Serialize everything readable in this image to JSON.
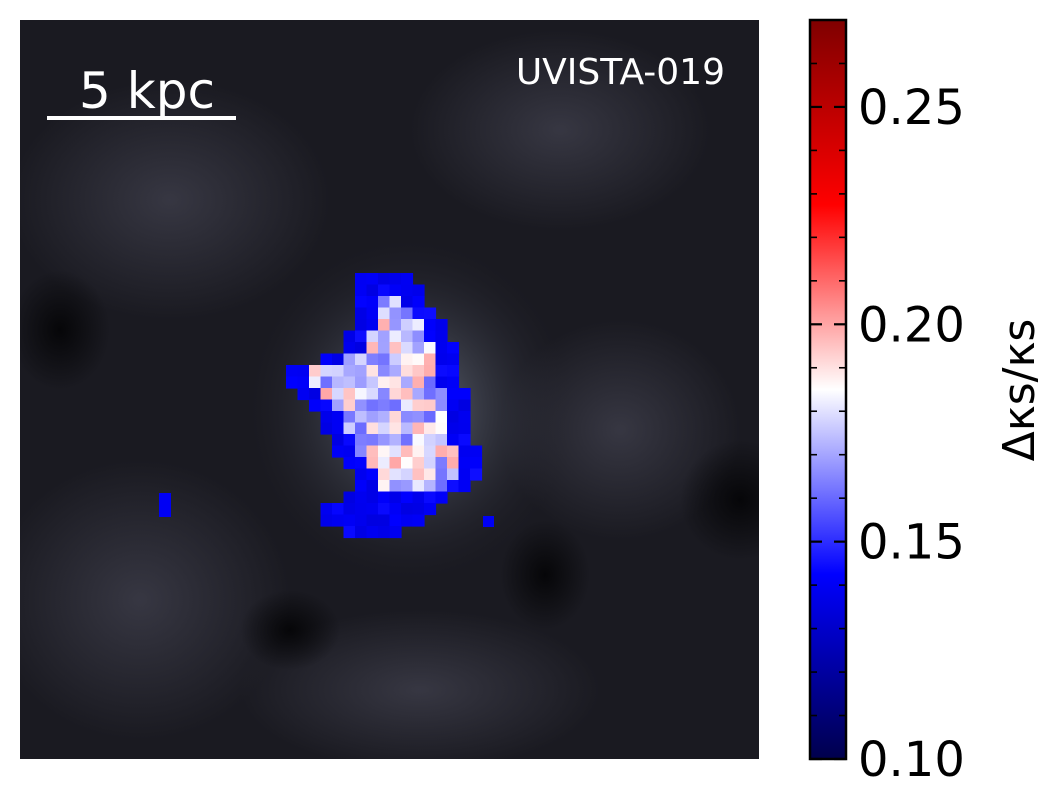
{
  "panel": {
    "object_label": "UVISTA-019",
    "scale_bar_label": "5 kpc"
  },
  "chart_data": {
    "type": "heatmap",
    "description_of_layers": [
      "grayscale image background",
      "pixel map colored by value"
    ],
    "colormap": {
      "name": "seismic",
      "stops": [
        "#00004c",
        "#0000ff",
        "#ffffff",
        "#ff0000",
        "#7f0000"
      ]
    },
    "colorbar": {
      "label": "Δκs/κs",
      "range": [
        0.1,
        0.27
      ],
      "ticks": [
        0.1,
        0.15,
        0.2,
        0.25
      ],
      "tick_labels": [
        "0.10",
        "0.15",
        "0.20",
        "0.25"
      ],
      "minor_tick_step": 0.01
    },
    "masked_region_values_approx": {
      "outer_edge": 0.14,
      "interior_mean": 0.18
    }
  }
}
